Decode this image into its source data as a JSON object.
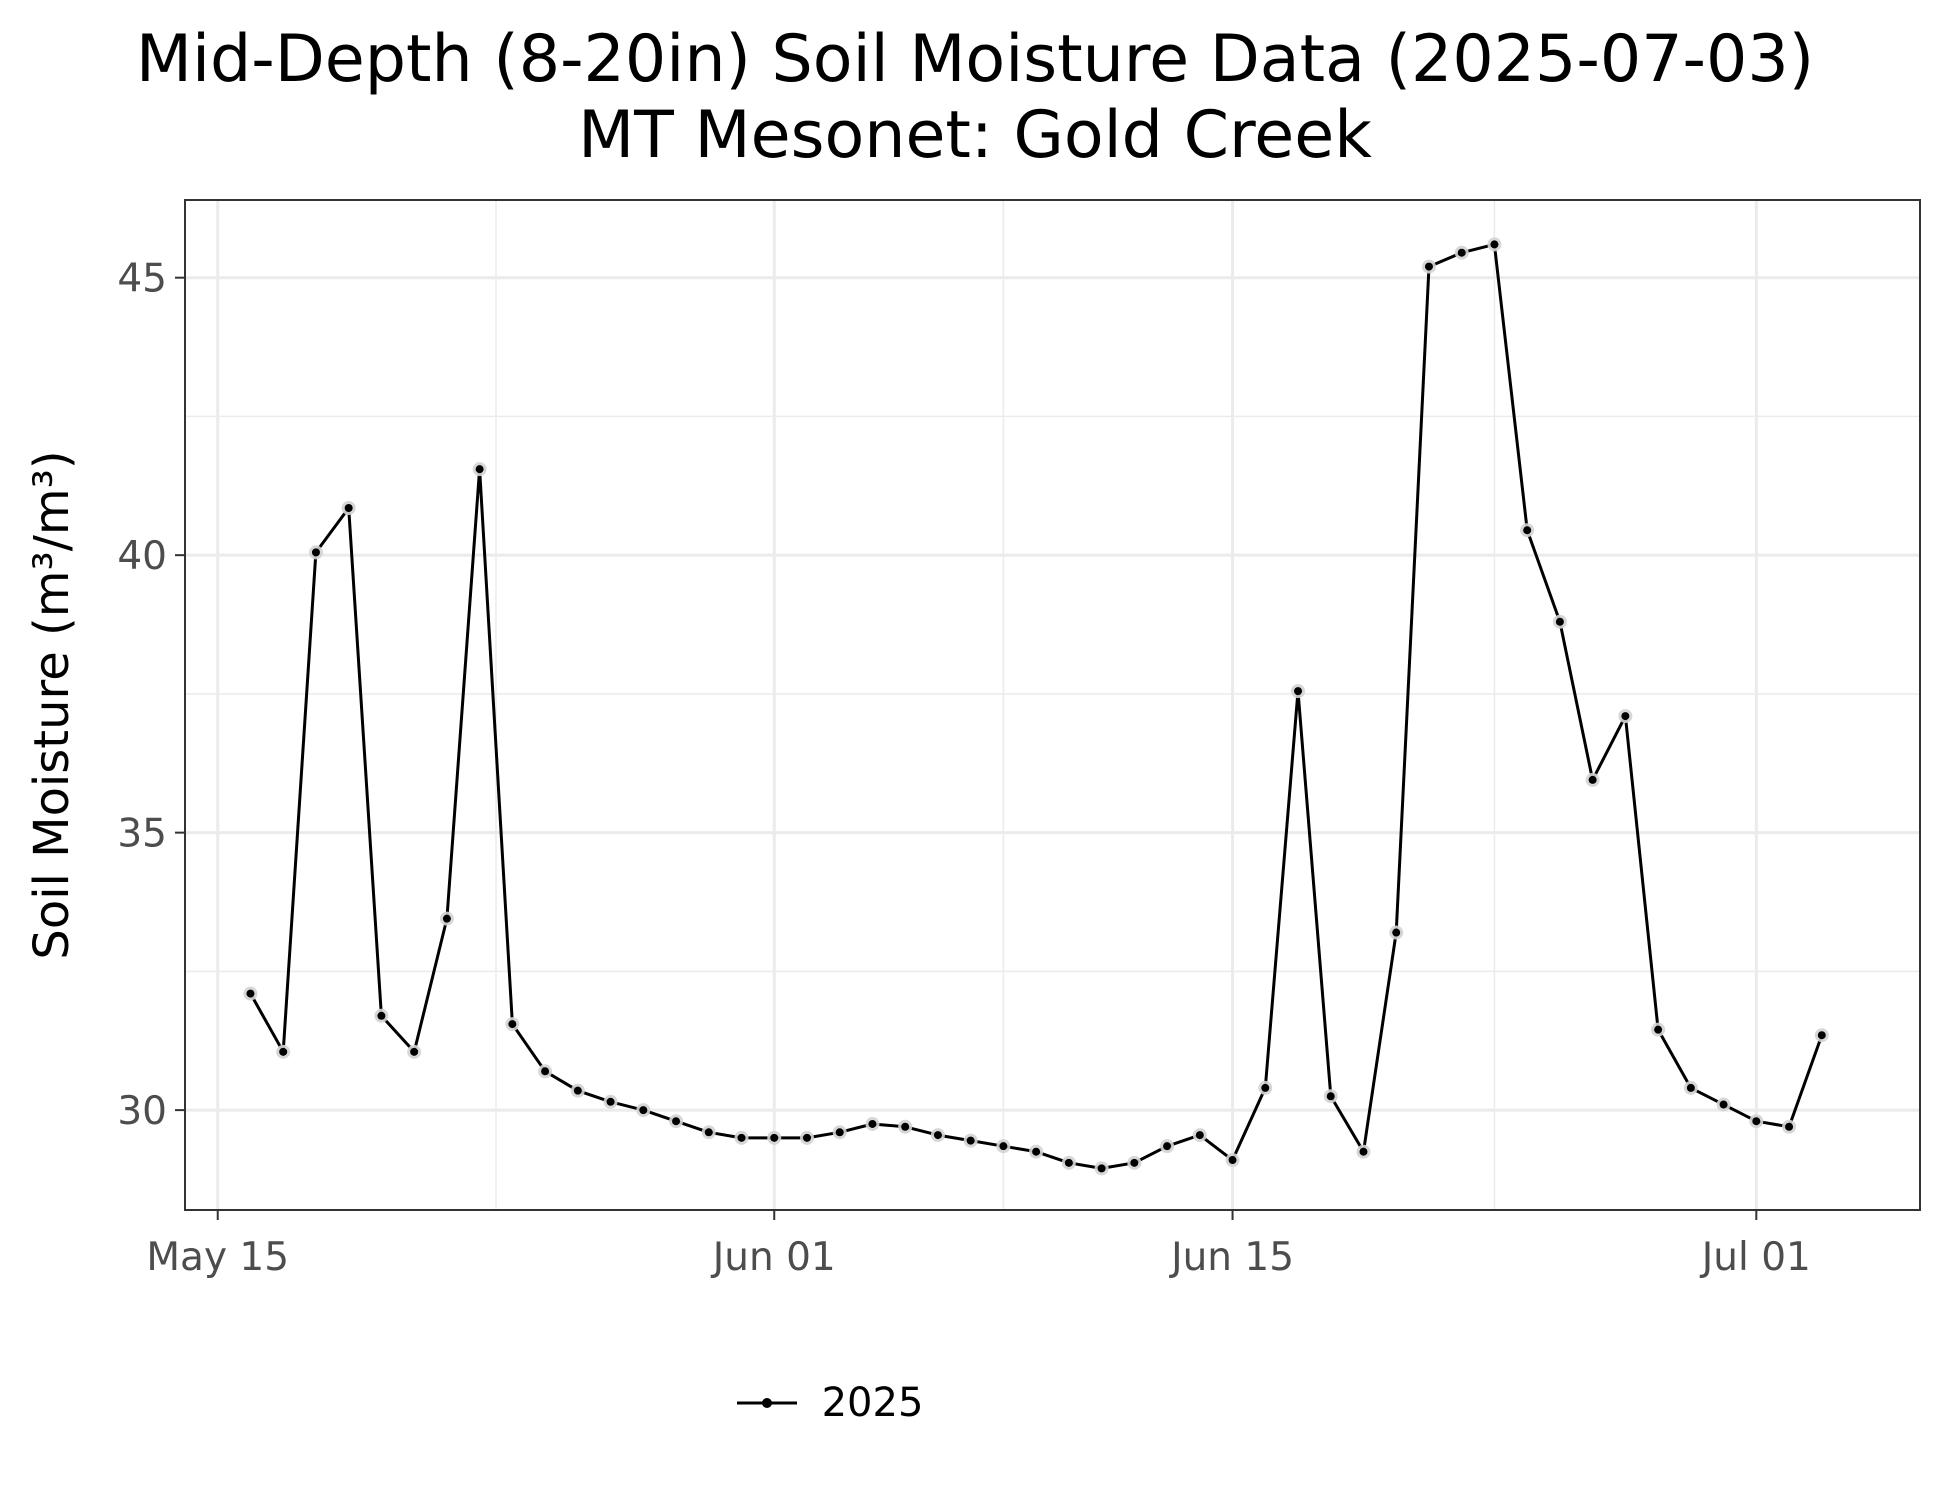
{
  "chart_data": {
    "type": "line",
    "title": "Mid-Depth (8-20in) Soil Moisture Data (2025-07-03)",
    "subtitle": "MT Mesonet: Gold Creek",
    "ylabel": "Soil Moisture (m³/m³)",
    "xlabel": "",
    "xlim": [
      "2025-05-14",
      "2025-07-06"
    ],
    "ylim": [
      28.2,
      46.4
    ],
    "grid": true,
    "legend_position": "bottom",
    "x_ticks": [
      {
        "date": "2025-05-15",
        "label": "May 15"
      },
      {
        "date": "2025-06-01",
        "label": "Jun 01"
      },
      {
        "date": "2025-06-15",
        "label": "Jun 15"
      },
      {
        "date": "2025-07-01",
        "label": "Jul 01"
      }
    ],
    "y_ticks": [
      {
        "value": 30,
        "label": "30"
      },
      {
        "value": 35,
        "label": "35"
      },
      {
        "value": 40,
        "label": "40"
      },
      {
        "value": 45,
        "label": "45"
      }
    ],
    "series": [
      {
        "name": "2025",
        "color": "#000000",
        "points": [
          [
            "2025-05-16",
            32.1
          ],
          [
            "2025-05-17",
            31.05
          ],
          [
            "2025-05-18",
            40.05
          ],
          [
            "2025-05-19",
            40.85
          ],
          [
            "2025-05-20",
            31.7
          ],
          [
            "2025-05-21",
            31.05
          ],
          [
            "2025-05-22",
            33.45
          ],
          [
            "2025-05-23",
            41.55
          ],
          [
            "2025-05-24",
            31.55
          ],
          [
            "2025-05-25",
            30.7
          ],
          [
            "2025-05-26",
            30.35
          ],
          [
            "2025-05-27",
            30.15
          ],
          [
            "2025-05-28",
            30.0
          ],
          [
            "2025-05-29",
            29.8
          ],
          [
            "2025-05-30",
            29.6
          ],
          [
            "2025-05-31",
            29.5
          ],
          [
            "2025-06-01",
            29.5
          ],
          [
            "2025-06-02",
            29.5
          ],
          [
            "2025-06-03",
            29.6
          ],
          [
            "2025-06-04",
            29.75
          ],
          [
            "2025-06-05",
            29.7
          ],
          [
            "2025-06-06",
            29.55
          ],
          [
            "2025-06-07",
            29.45
          ],
          [
            "2025-06-08",
            29.35
          ],
          [
            "2025-06-09",
            29.25
          ],
          [
            "2025-06-10",
            29.05
          ],
          [
            "2025-06-11",
            28.95
          ],
          [
            "2025-06-12",
            29.05
          ],
          [
            "2025-06-13",
            29.35
          ],
          [
            "2025-06-14",
            29.55
          ],
          [
            "2025-06-15",
            29.1
          ],
          [
            "2025-06-16",
            30.4
          ],
          [
            "2025-06-17",
            37.55
          ],
          [
            "2025-06-18",
            30.25
          ],
          [
            "2025-06-19",
            29.25
          ],
          [
            "2025-06-20",
            33.2
          ],
          [
            "2025-06-21",
            45.2
          ],
          [
            "2025-06-22",
            45.45
          ],
          [
            "2025-06-23",
            45.6
          ],
          [
            "2025-06-24",
            40.45
          ],
          [
            "2025-06-25",
            38.8
          ],
          [
            "2025-06-26",
            35.95
          ],
          [
            "2025-06-27",
            37.1
          ],
          [
            "2025-06-28",
            31.45
          ],
          [
            "2025-06-29",
            30.4
          ],
          [
            "2025-06-30",
            30.1
          ],
          [
            "2025-07-01",
            29.8
          ],
          [
            "2025-07-02",
            29.7
          ],
          [
            "2025-07-03",
            31.35
          ]
        ]
      }
    ]
  }
}
